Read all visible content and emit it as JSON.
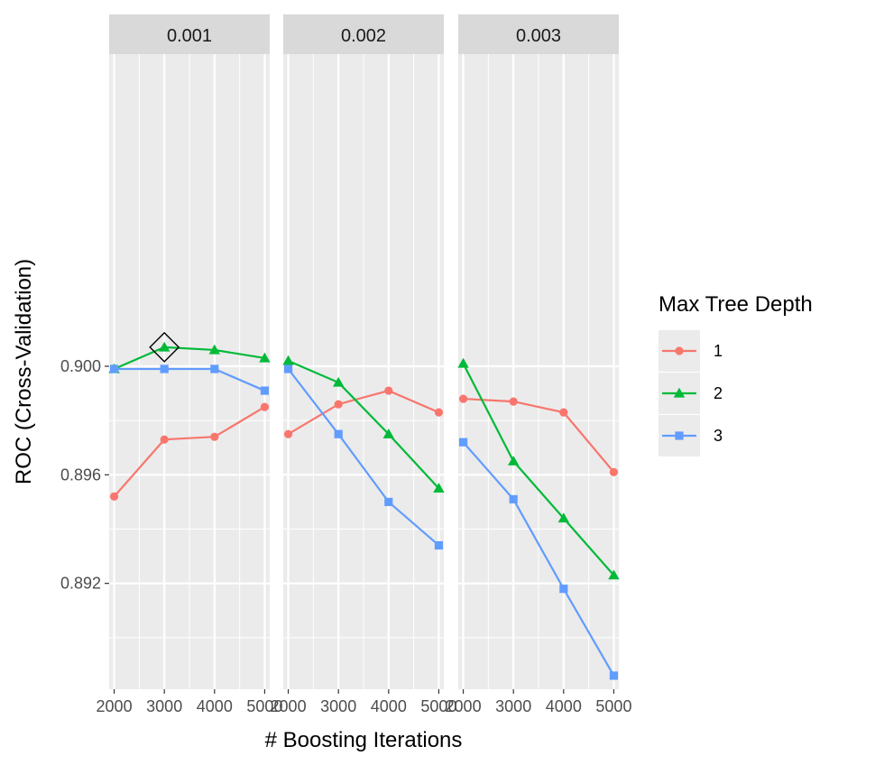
{
  "chart_data": {
    "type": "line",
    "facets": [
      "0.001",
      "0.002",
      "0.003"
    ],
    "x": [
      2000,
      3000,
      4000,
      5000
    ],
    "x_tick_labels": [
      "2000",
      "3000",
      "4000",
      "5000"
    ],
    "y_tick_labels": [
      "0.892",
      "0.896",
      "0.900"
    ],
    "y_ticks": [
      0.892,
      0.896,
      0.9
    ],
    "xlim": [
      1900,
      5100
    ],
    "ylim": [
      0.8881,
      0.9115
    ],
    "xlabel": "# Boosting Iterations",
    "ylabel": "ROC (Cross-Validation)",
    "legend_title": "Max Tree Depth",
    "legend_position": "right",
    "grid": true,
    "panels": [
      {
        "facet": "0.001",
        "series": [
          {
            "name": "1",
            "values": [
              0.8952,
              0.8973,
              0.8974,
              0.8985
            ]
          },
          {
            "name": "2",
            "values": [
              0.8999,
              0.9007,
              0.9006,
              0.9003
            ]
          },
          {
            "name": "3",
            "values": [
              0.8999,
              0.8999,
              0.8999,
              0.8991
            ]
          }
        ],
        "highlight": {
          "series": "2",
          "x": 3000,
          "value": 0.9007
        }
      },
      {
        "facet": "0.002",
        "series": [
          {
            "name": "1",
            "values": [
              0.8975,
              0.8986,
              0.8991,
              0.8983
            ]
          },
          {
            "name": "2",
            "values": [
              0.9002,
              0.8994,
              0.8975,
              0.8955
            ]
          },
          {
            "name": "3",
            "values": [
              0.8999,
              0.8975,
              0.895,
              0.8934
            ]
          }
        ]
      },
      {
        "facet": "0.003",
        "series": [
          {
            "name": "1",
            "values": [
              0.8988,
              0.8987,
              0.8983,
              0.8961
            ]
          },
          {
            "name": "2",
            "values": [
              0.9001,
              0.8965,
              0.8944,
              0.8923
            ]
          },
          {
            "name": "3",
            "values": [
              0.8972,
              0.8951,
              0.8918,
              0.8886
            ]
          }
        ]
      }
    ],
    "series_styles": [
      {
        "name": "1",
        "color": "#F8766D",
        "shape": "circle"
      },
      {
        "name": "2",
        "color": "#00BA38",
        "shape": "triangle"
      },
      {
        "name": "3",
        "color": "#619CFF",
        "shape": "square"
      }
    ]
  }
}
